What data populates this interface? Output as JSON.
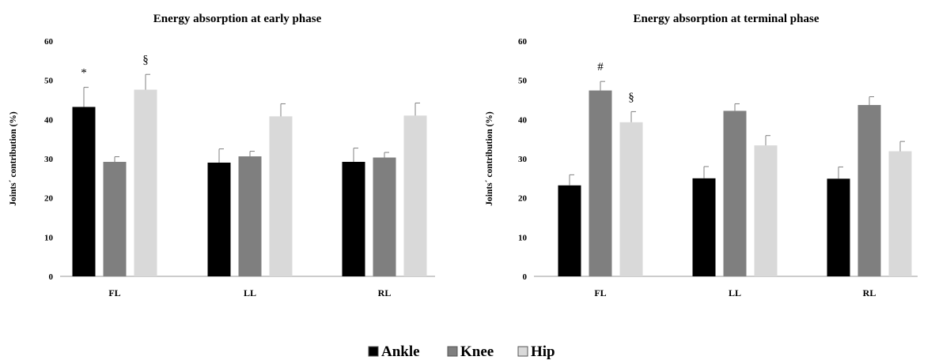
{
  "chart_data": [
    {
      "type": "bar",
      "title": "Energy absorption at early phase",
      "xlabel": "",
      "ylabel": "Joints´ contribution (%)",
      "ylim": [
        0,
        60
      ],
      "yticks": [
        0,
        10,
        20,
        30,
        40,
        50,
        60
      ],
      "categories": [
        "FL",
        "LL",
        "RL"
      ],
      "series": [
        {
          "name": "Ankle",
          "values": [
            43.2,
            29.0,
            29.2
          ],
          "errors": [
            5.0,
            3.5,
            3.5
          ]
        },
        {
          "name": "Knee",
          "values": [
            29.2,
            30.6,
            30.3
          ],
          "errors": [
            1.3,
            1.3,
            1.3
          ]
        },
        {
          "name": "Hip",
          "values": [
            47.6,
            40.8,
            41.0
          ],
          "errors": [
            3.9,
            3.2,
            3.2
          ]
        }
      ],
      "annotations": [
        {
          "text": "*",
          "category": "FL",
          "series": "Ankle"
        },
        {
          "text": "§",
          "category": "FL",
          "series": "Hip"
        }
      ],
      "grid": false
    },
    {
      "type": "bar",
      "title": "Energy absorption at terminal phase",
      "xlabel": "",
      "ylabel": "Joints´ contribution (%)",
      "ylim": [
        0,
        60
      ],
      "yticks": [
        0,
        10,
        20,
        30,
        40,
        50,
        60
      ],
      "categories": [
        "FL",
        "LL",
        "RL"
      ],
      "series": [
        {
          "name": "Ankle",
          "values": [
            23.2,
            25.0,
            24.9
          ],
          "errors": [
            2.7,
            3.0,
            3.0
          ]
        },
        {
          "name": "Knee",
          "values": [
            47.4,
            42.2,
            43.7
          ],
          "errors": [
            2.3,
            1.8,
            2.1
          ]
        },
        {
          "name": "Hip",
          "values": [
            39.3,
            33.4,
            31.9
          ],
          "errors": [
            2.7,
            2.5,
            2.5
          ]
        }
      ],
      "annotations": [
        {
          "text": "#",
          "category": "FL",
          "series": "Knee"
        },
        {
          "text": "§",
          "category": "FL",
          "series": "Hip"
        }
      ],
      "grid": false
    }
  ],
  "legend": {
    "items": [
      {
        "label": "Ankle",
        "color": "#000000"
      },
      {
        "label": "Knee",
        "color": "#7f7f7f"
      },
      {
        "label": "Hip",
        "color": "#d9d9d9"
      }
    ]
  },
  "colors": {
    "Ankle": "#000000",
    "Knee": "#7f7f7f",
    "Hip": "#d9d9d9",
    "axis": "#999999",
    "errorbar": "#808080"
  }
}
